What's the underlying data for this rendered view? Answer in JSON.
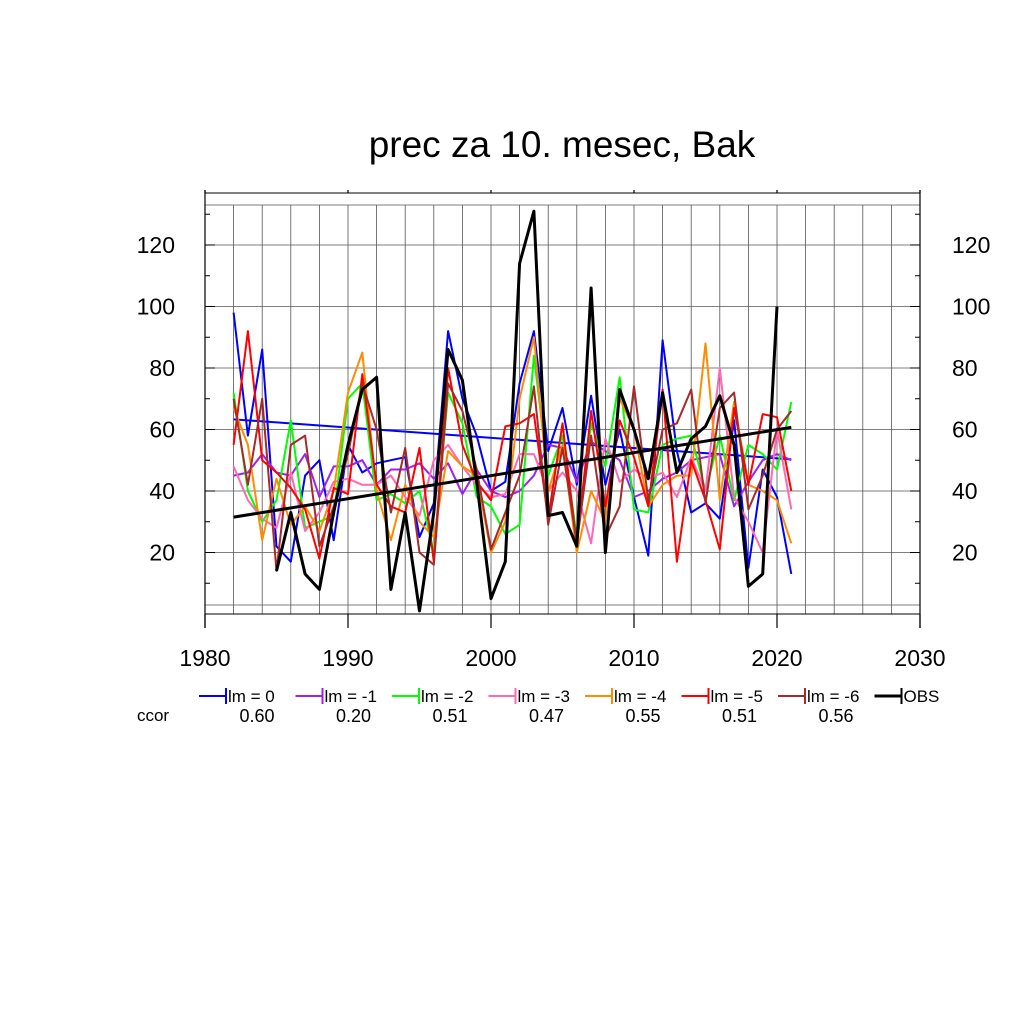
{
  "chart_data": {
    "type": "line",
    "title": "prec za 10. mesec, Bak",
    "xlabel": "",
    "ylabel": "",
    "xlim": [
      1980,
      2030
    ],
    "ylim": [
      0,
      133
    ],
    "xticks": [
      1980,
      1990,
      2000,
      2010,
      2020,
      2030
    ],
    "xtick_labels": [
      "1980",
      "1990",
      "2000",
      "2010",
      "2020",
      "2030"
    ],
    "yticks": [
      20,
      40,
      60,
      80,
      100,
      120
    ],
    "ytick_labels": [
      "20",
      "40",
      "60",
      "80",
      "100",
      "120"
    ],
    "grid": true,
    "legend_position": "bottom",
    "ccor_label": "ccor",
    "x": [
      1982,
      1983,
      1984,
      1985,
      1986,
      1987,
      1988,
      1989,
      1990,
      1991,
      1992,
      1993,
      1994,
      1995,
      1996,
      1997,
      1998,
      1999,
      2000,
      2001,
      2002,
      2003,
      2004,
      2005,
      2006,
      2007,
      2008,
      2009,
      2010,
      2011,
      2012,
      2013,
      2014,
      2015,
      2016,
      2017,
      2018,
      2019,
      2020,
      2021
    ],
    "series": [
      {
        "name": "lm = 0",
        "color": "#0000ff",
        "ccor": "0.60",
        "values": [
          98,
          58,
          86,
          22,
          17,
          45,
          50,
          24,
          55,
          46,
          49,
          50,
          51,
          25,
          36,
          92,
          70,
          58,
          40,
          43,
          75,
          92,
          53,
          67,
          42,
          71,
          42,
          60,
          38,
          19,
          89,
          53,
          33,
          36,
          31,
          63,
          15,
          47,
          38,
          13
        ],
        "trend": [
          63.3,
          50.3
        ]
      },
      {
        "name": "lm = -1",
        "color": "#a020f0",
        "ccor": "0.20",
        "values": [
          45,
          46,
          52,
          46,
          45,
          52,
          38,
          48,
          48,
          50,
          42,
          47,
          47,
          49,
          44,
          49,
          39,
          47,
          40,
          38,
          40,
          45,
          55,
          54,
          43,
          56,
          53,
          50,
          38,
          40,
          44,
          46,
          50,
          51,
          52,
          35,
          43,
          50,
          52,
          50
        ]
      },
      {
        "name": "lm = -2",
        "color": "#00ff00",
        "ccor": "0.51",
        "values": [
          72,
          40,
          30,
          37,
          63,
          28,
          30,
          32,
          70,
          75,
          37,
          39,
          36,
          40,
          20,
          72,
          62,
          38,
          35,
          26,
          29,
          84,
          45,
          58,
          25,
          62,
          48,
          77,
          34,
          33,
          55,
          57,
          58,
          40,
          58,
          37,
          55,
          52,
          47,
          69
        ]
      },
      {
        "name": "lm = -3",
        "color": "#ff69b4",
        "ccor": "0.47",
        "values": [
          48,
          37,
          31,
          28,
          46,
          27,
          33,
          43,
          44,
          42,
          42,
          45,
          38,
          32,
          50,
          55,
          48,
          42,
          38,
          39,
          52,
          52,
          40,
          46,
          40,
          23,
          57,
          43,
          47,
          44,
          46,
          38,
          51,
          40,
          80,
          38,
          30,
          20,
          60,
          34
        ]
      },
      {
        "name": "lm = -4",
        "color": "#ff8c00",
        "ccor": "0.55",
        "values": [
          67,
          55,
          24,
          44,
          29,
          35,
          27,
          40,
          72,
          85,
          40,
          24,
          42,
          30,
          25,
          53,
          48,
          45,
          20,
          30,
          70,
          90,
          40,
          55,
          20,
          40,
          30,
          70,
          60,
          35,
          42,
          45,
          45,
          88,
          37,
          69,
          42,
          40,
          37,
          23
        ]
      },
      {
        "name": "lm = -5",
        "color": "#ff0000",
        "ccor": "0.51",
        "values": [
          55,
          92,
          50,
          46,
          41,
          34,
          18,
          41,
          39,
          78,
          42,
          35,
          33,
          54,
          17,
          80,
          55,
          43,
          37,
          61,
          62,
          65,
          31,
          62,
          22,
          66,
          35,
          63,
          51,
          35,
          73,
          17,
          50,
          37,
          21,
          67,
          42,
          65,
          64,
          40
        ]
      },
      {
        "name": "lm = -6",
        "color": "#a52a2a",
        "ccor": "0.56",
        "values": [
          70,
          42,
          70,
          14,
          55,
          58,
          22,
          35,
          52,
          75,
          60,
          33,
          54,
          20,
          16,
          75,
          66,
          47,
          21,
          33,
          45,
          74,
          29,
          54,
          23,
          58,
          25,
          35,
          74,
          37,
          60,
          62,
          73,
          36,
          67,
          72,
          34,
          45,
          60,
          66
        ]
      },
      {
        "name": "OBS",
        "color": "#000000",
        "ccor": "",
        "values": [
          null,
          null,
          null,
          14,
          33,
          13,
          8,
          33,
          55,
          73,
          77,
          8,
          33,
          1,
          33,
          86,
          76,
          43,
          5,
          17,
          114,
          131,
          32,
          33,
          22,
          106,
          20,
          73,
          60,
          44,
          72,
          46,
          57,
          61,
          71,
          55,
          9,
          13,
          100,
          null
        ],
        "trend": [
          31.5,
          60.7
        ]
      }
    ]
  }
}
